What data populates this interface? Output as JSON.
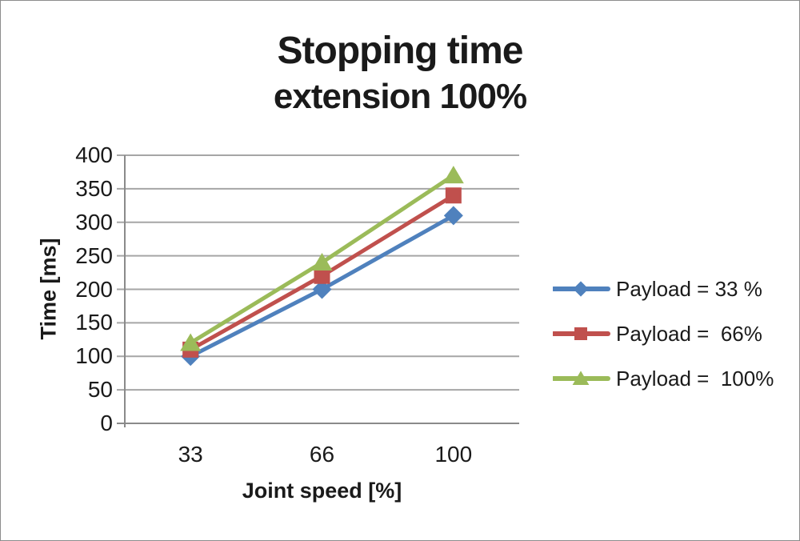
{
  "title": {
    "line1": "Stopping time",
    "line2": "extension 100%"
  },
  "chart_data": {
    "type": "line",
    "title": "Stopping time extension 100%",
    "categories": [
      "33",
      "66",
      "100"
    ],
    "x_values": [
      33,
      66,
      100
    ],
    "series": [
      {
        "name": "Payload = 33 %",
        "values": [
          100,
          200,
          310
        ],
        "color": "#4F81BD",
        "marker": "diamond"
      },
      {
        "name": "Payload =  66%",
        "values": [
          110,
          220,
          340
        ],
        "color": "#C0504D",
        "marker": "square"
      },
      {
        "name": "Payload =  100%",
        "values": [
          120,
          240,
          370
        ],
        "color": "#9BBB59",
        "marker": "triangle"
      }
    ],
    "xlabel": "Joint speed [%]",
    "ylabel": "Time [ms]",
    "ylim": [
      0,
      400
    ],
    "ytick_step": 50,
    "yticks": [
      0,
      50,
      100,
      150,
      200,
      250,
      300,
      350,
      400
    ],
    "grid": true,
    "legend_position": "right",
    "colors": {
      "gridline": "#A6A6A6",
      "axis": "#8A8A8A",
      "text": "#1A1A1A",
      "background": "#FFFFFF",
      "canvas_border": "#8C8C8C"
    }
  }
}
